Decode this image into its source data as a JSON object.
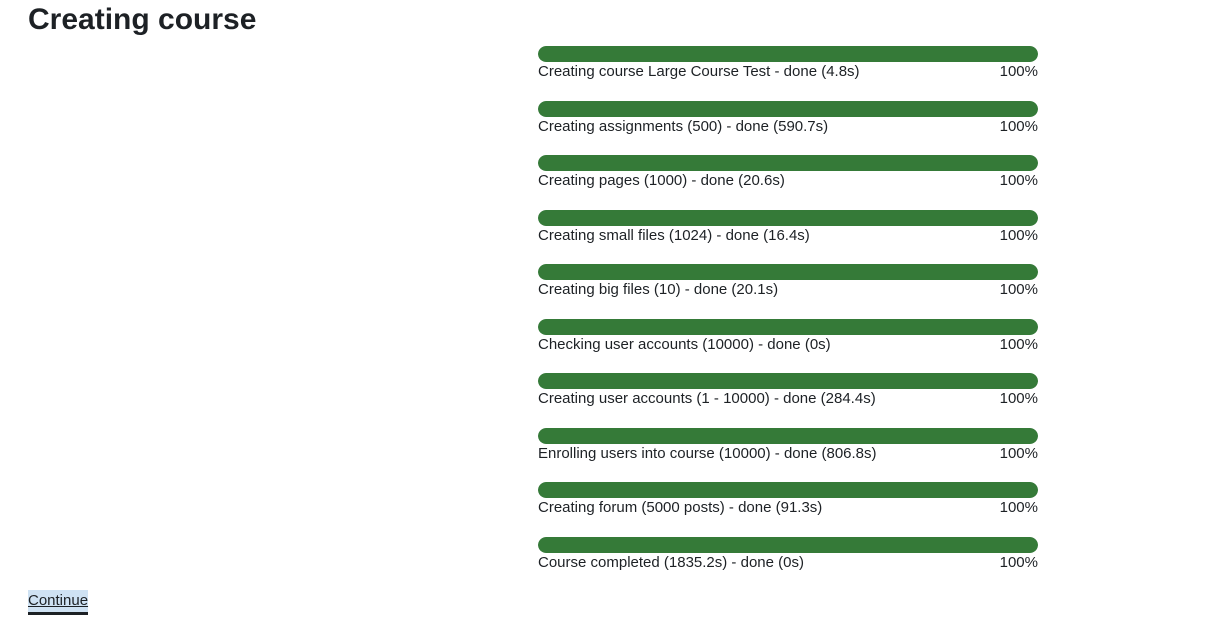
{
  "page": {
    "title": "Creating course"
  },
  "progress": {
    "fill_color": "#357a38",
    "items": [
      {
        "label": "Creating course Large Course Test - done (4.8s)",
        "percent_label": "100%",
        "value": 100
      },
      {
        "label": "Creating assignments (500) - done (590.7s)",
        "percent_label": "100%",
        "value": 100
      },
      {
        "label": "Creating pages (1000) - done (20.6s)",
        "percent_label": "100%",
        "value": 100
      },
      {
        "label": "Creating small files (1024) - done (16.4s)",
        "percent_label": "100%",
        "value": 100
      },
      {
        "label": "Creating big files (10) - done (20.1s)",
        "percent_label": "100%",
        "value": 100
      },
      {
        "label": "Checking user accounts (10000) - done (0s)",
        "percent_label": "100%",
        "value": 100
      },
      {
        "label": "Creating user accounts (1 - 10000) - done (284.4s)",
        "percent_label": "100%",
        "value": 100
      },
      {
        "label": "Enrolling users into course (10000) - done (806.8s)",
        "percent_label": "100%",
        "value": 100
      },
      {
        "label": "Creating forum (5000 posts) - done (91.3s)",
        "percent_label": "100%",
        "value": 100
      },
      {
        "label": "Course completed (1835.2s) - done (0s)",
        "percent_label": "100%",
        "value": 100
      }
    ]
  },
  "actions": {
    "continue_label": "Continue"
  }
}
